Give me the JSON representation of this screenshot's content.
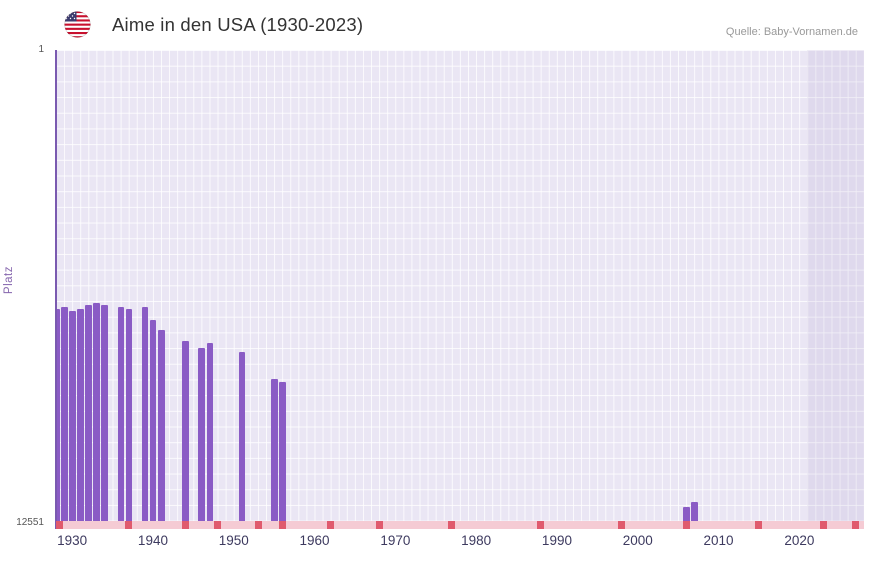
{
  "header": {
    "title": "Aime in den USA (1930-2023)",
    "source": "Quelle: Baby-Vornamen.de"
  },
  "chart_data": {
    "type": "bar",
    "title": "Aime in den USA (1930-2023)",
    "xlabel": "",
    "ylabel": "Platz",
    "legend": null,
    "grid": true,
    "y_axis": {
      "min": 1,
      "max": 12551,
      "inverted": true,
      "top_tick_label": "1",
      "bottom_tick_label": "12551"
    },
    "x_axis": {
      "min": 1928,
      "max": 2028,
      "tick_years": [
        1930,
        1940,
        1950,
        1960,
        1970,
        1980,
        1990,
        2000,
        2010,
        2020
      ]
    },
    "bar_color": "#8a5bc5",
    "bars": [
      {
        "year": 1928,
        "rank": 6900
      },
      {
        "year": 1929,
        "rank": 6850
      },
      {
        "year": 1930,
        "rank": 6950
      },
      {
        "year": 1931,
        "rank": 6900
      },
      {
        "year": 1932,
        "rank": 6800
      },
      {
        "year": 1933,
        "rank": 6750
      },
      {
        "year": 1934,
        "rank": 6800
      },
      {
        "year": 1936,
        "rank": 6850
      },
      {
        "year": 1937,
        "rank": 6900
      },
      {
        "year": 1939,
        "rank": 6850
      },
      {
        "year": 1940,
        "rank": 7200
      },
      {
        "year": 1941,
        "rank": 7450
      },
      {
        "year": 1944,
        "rank": 7750
      },
      {
        "year": 1946,
        "rank": 7950
      },
      {
        "year": 1947,
        "rank": 7800
      },
      {
        "year": 1951,
        "rank": 8050
      },
      {
        "year": 1955,
        "rank": 8770
      },
      {
        "year": 1956,
        "rank": 8850
      },
      {
        "year": 2006,
        "rank": 12180
      },
      {
        "year": 2007,
        "rank": 12040
      }
    ],
    "unranked_strip": {
      "color": "#f5cbd4",
      "mark_color": "#e05a6d",
      "mark_years": [
        1928,
        1937,
        1944,
        1948,
        1953,
        1956,
        1962,
        1968,
        1977,
        1988,
        1998,
        2006,
        2015,
        2023,
        2027
      ]
    },
    "future_band": {
      "start_year": 2021
    }
  }
}
